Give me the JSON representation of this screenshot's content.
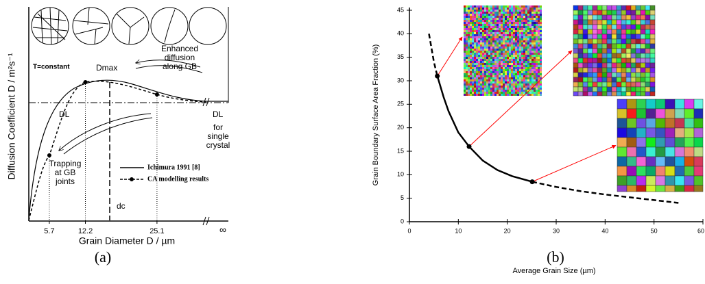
{
  "chart_data": [
    {
      "type": "schematic",
      "ylabel": "Diffusion Coefficient  D / m²s⁻¹",
      "xlabel": "Grain Diameter  D / µm",
      "xlim": [
        2,
        35
      ],
      "xticks": [
        5.7,
        12.2,
        25.1
      ],
      "infinity_label": "∞",
      "caption": "(a)",
      "annotations": [
        "T=constant",
        "Dmax",
        "DL",
        "DL",
        "dc"
      ],
      "notes": [
        [
          "Enhanced",
          "diffusion",
          "along GB"
        ],
        [
          "for",
          "single",
          "crystal"
        ],
        [
          "Trapping",
          "at GB",
          "joints"
        ]
      ],
      "series": [
        {
          "name": "Ichimura 1991 [8]",
          "style": "solid",
          "color": "#000000"
        },
        {
          "name": "CA modelling results",
          "style": "dashed",
          "color": "#000000",
          "markers": true,
          "x": [
            5.7,
            12.2,
            25.1
          ]
        }
      ]
    },
    {
      "type": "line",
      "xlabel": "Average Grain Size (µm)",
      "ylabel": "Grain Boundary Surface Area Fraction (%)",
      "caption": "(b)",
      "xlim": [
        0,
        60
      ],
      "xticks": [
        0,
        10,
        20,
        30,
        40,
        50,
        60
      ],
      "ylim": [
        0,
        45
      ],
      "yticks": [
        0,
        5,
        10,
        15,
        20,
        25,
        30,
        35,
        40,
        45
      ],
      "series": [
        {
          "style": "dashed",
          "color": "#000000",
          "x": [
            4,
            4.5,
            5,
            5.7
          ],
          "values": [
            40,
            37,
            34,
            31
          ]
        },
        {
          "style": "solid",
          "color": "#000000",
          "x": [
            5.7,
            7,
            8,
            10,
            12.2,
            15,
            18,
            21,
            25.1
          ],
          "values": [
            31,
            26.5,
            23.5,
            19,
            16,
            13,
            11,
            9.7,
            8.5
          ]
        },
        {
          "style": "dashed",
          "color": "#000000",
          "x": [
            25.1,
            30,
            35,
            40,
            45,
            50,
            55
          ],
          "values": [
            8.5,
            7.4,
            6.5,
            5.8,
            5.2,
            4.6,
            4
          ]
        },
        {
          "style": "markers",
          "color": "#000000",
          "x": [
            5.7,
            12.2,
            25.1
          ],
          "values": [
            31,
            16,
            8.5
          ]
        }
      ],
      "arrow_color": "#ff0000"
    }
  ]
}
